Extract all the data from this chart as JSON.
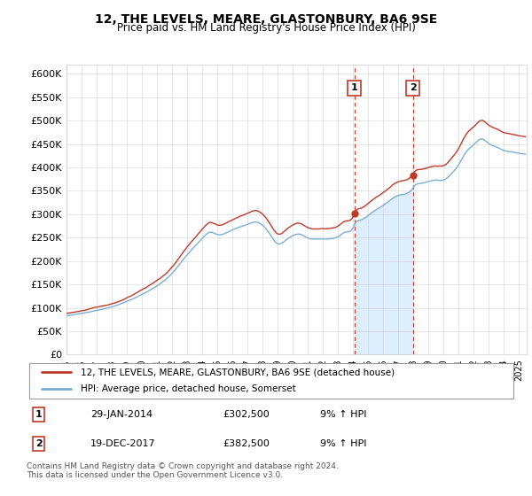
{
  "title": "12, THE LEVELS, MEARE, GLASTONBURY, BA6 9SE",
  "subtitle": "Price paid vs. HM Land Registry's House Price Index (HPI)",
  "ylabel_ticks": [
    "£0",
    "£50K",
    "£100K",
    "£150K",
    "£200K",
    "£250K",
    "£300K",
    "£350K",
    "£400K",
    "£450K",
    "£500K",
    "£550K",
    "£600K"
  ],
  "ytick_values": [
    0,
    50000,
    100000,
    150000,
    200000,
    250000,
    300000,
    350000,
    400000,
    450000,
    500000,
    550000,
    600000
  ],
  "ylim": [
    0,
    620000
  ],
  "xlim_start": 1995.0,
  "xlim_end": 2025.5,
  "hpi_color": "#7bafd4",
  "price_color": "#c0392b",
  "hpi_fill_color": "#ddeeff",
  "marker1_x": 2014.08,
  "marker1_y": 302500,
  "marker1_label": "1",
  "marker1_date": "29-JAN-2014",
  "marker1_price": "£302,500",
  "marker1_hpi": "9% ↑ HPI",
  "marker2_x": 2017.96,
  "marker2_y": 382500,
  "marker2_label": "2",
  "marker2_date": "19-DEC-2017",
  "marker2_price": "£382,500",
  "marker2_hpi": "9% ↑ HPI",
  "vline1_x": 2014.08,
  "vline2_x": 2017.96,
  "legend_line1": "12, THE LEVELS, MEARE, GLASTONBURY, BA6 9SE (detached house)",
  "legend_line2": "HPI: Average price, detached house, Somerset",
  "footer": "Contains HM Land Registry data © Crown copyright and database right 2024.\nThis data is licensed under the Open Government Licence v3.0.",
  "background_color": "#ffffff",
  "grid_color": "#cccccc"
}
